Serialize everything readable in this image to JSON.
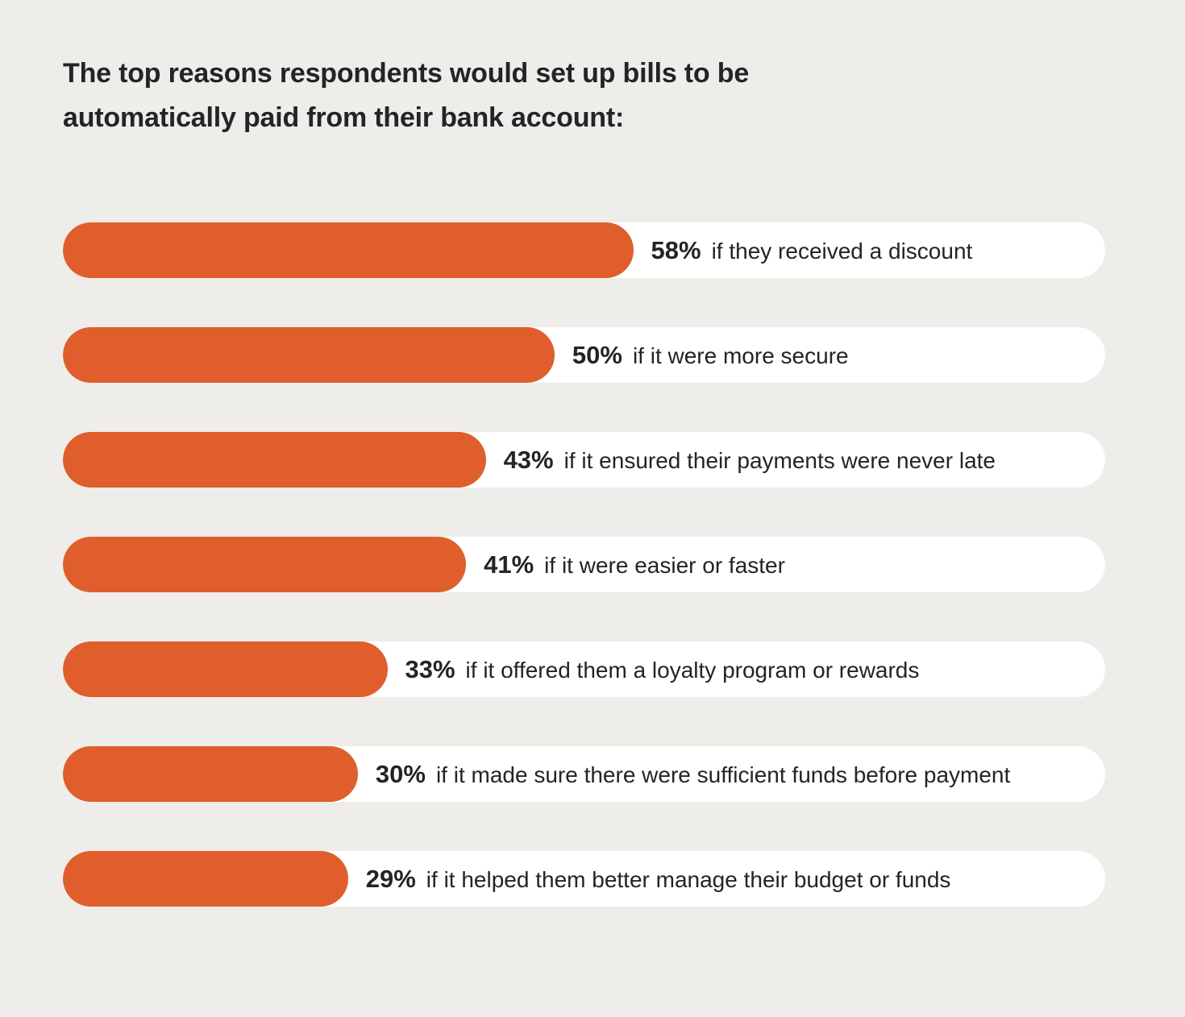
{
  "colors": {
    "background": "#EFEDE9",
    "bar_fill": "#DF5E2B",
    "bar_track": "#FFFFFF",
    "text": "#252228"
  },
  "title": {
    "line1": "The top reasons respondents would set up bills to be",
    "line2": "automatically paid from their bank account:"
  },
  "chart_data": {
    "type": "bar",
    "orientation": "horizontal",
    "title": "The top reasons respondents would set up bills to be automatically paid from their bank account:",
    "categories": [
      "if they received a discount",
      "if it were more secure",
      "if it ensured their payments were never late",
      "if it were easier or faster",
      "if it offered them a loyalty program or rewards",
      "if it made sure there were sufficient funds before payment",
      "if it helped them better manage their budget or funds"
    ],
    "values": [
      58,
      50,
      43,
      41,
      33,
      30,
      29
    ],
    "value_suffix": "%",
    "value_label_position": "right-of-bar",
    "xlim": [
      0,
      106
    ],
    "grid": false,
    "legend": false,
    "bar_color": "#DF5E2B",
    "track_color": "#FFFFFF"
  }
}
